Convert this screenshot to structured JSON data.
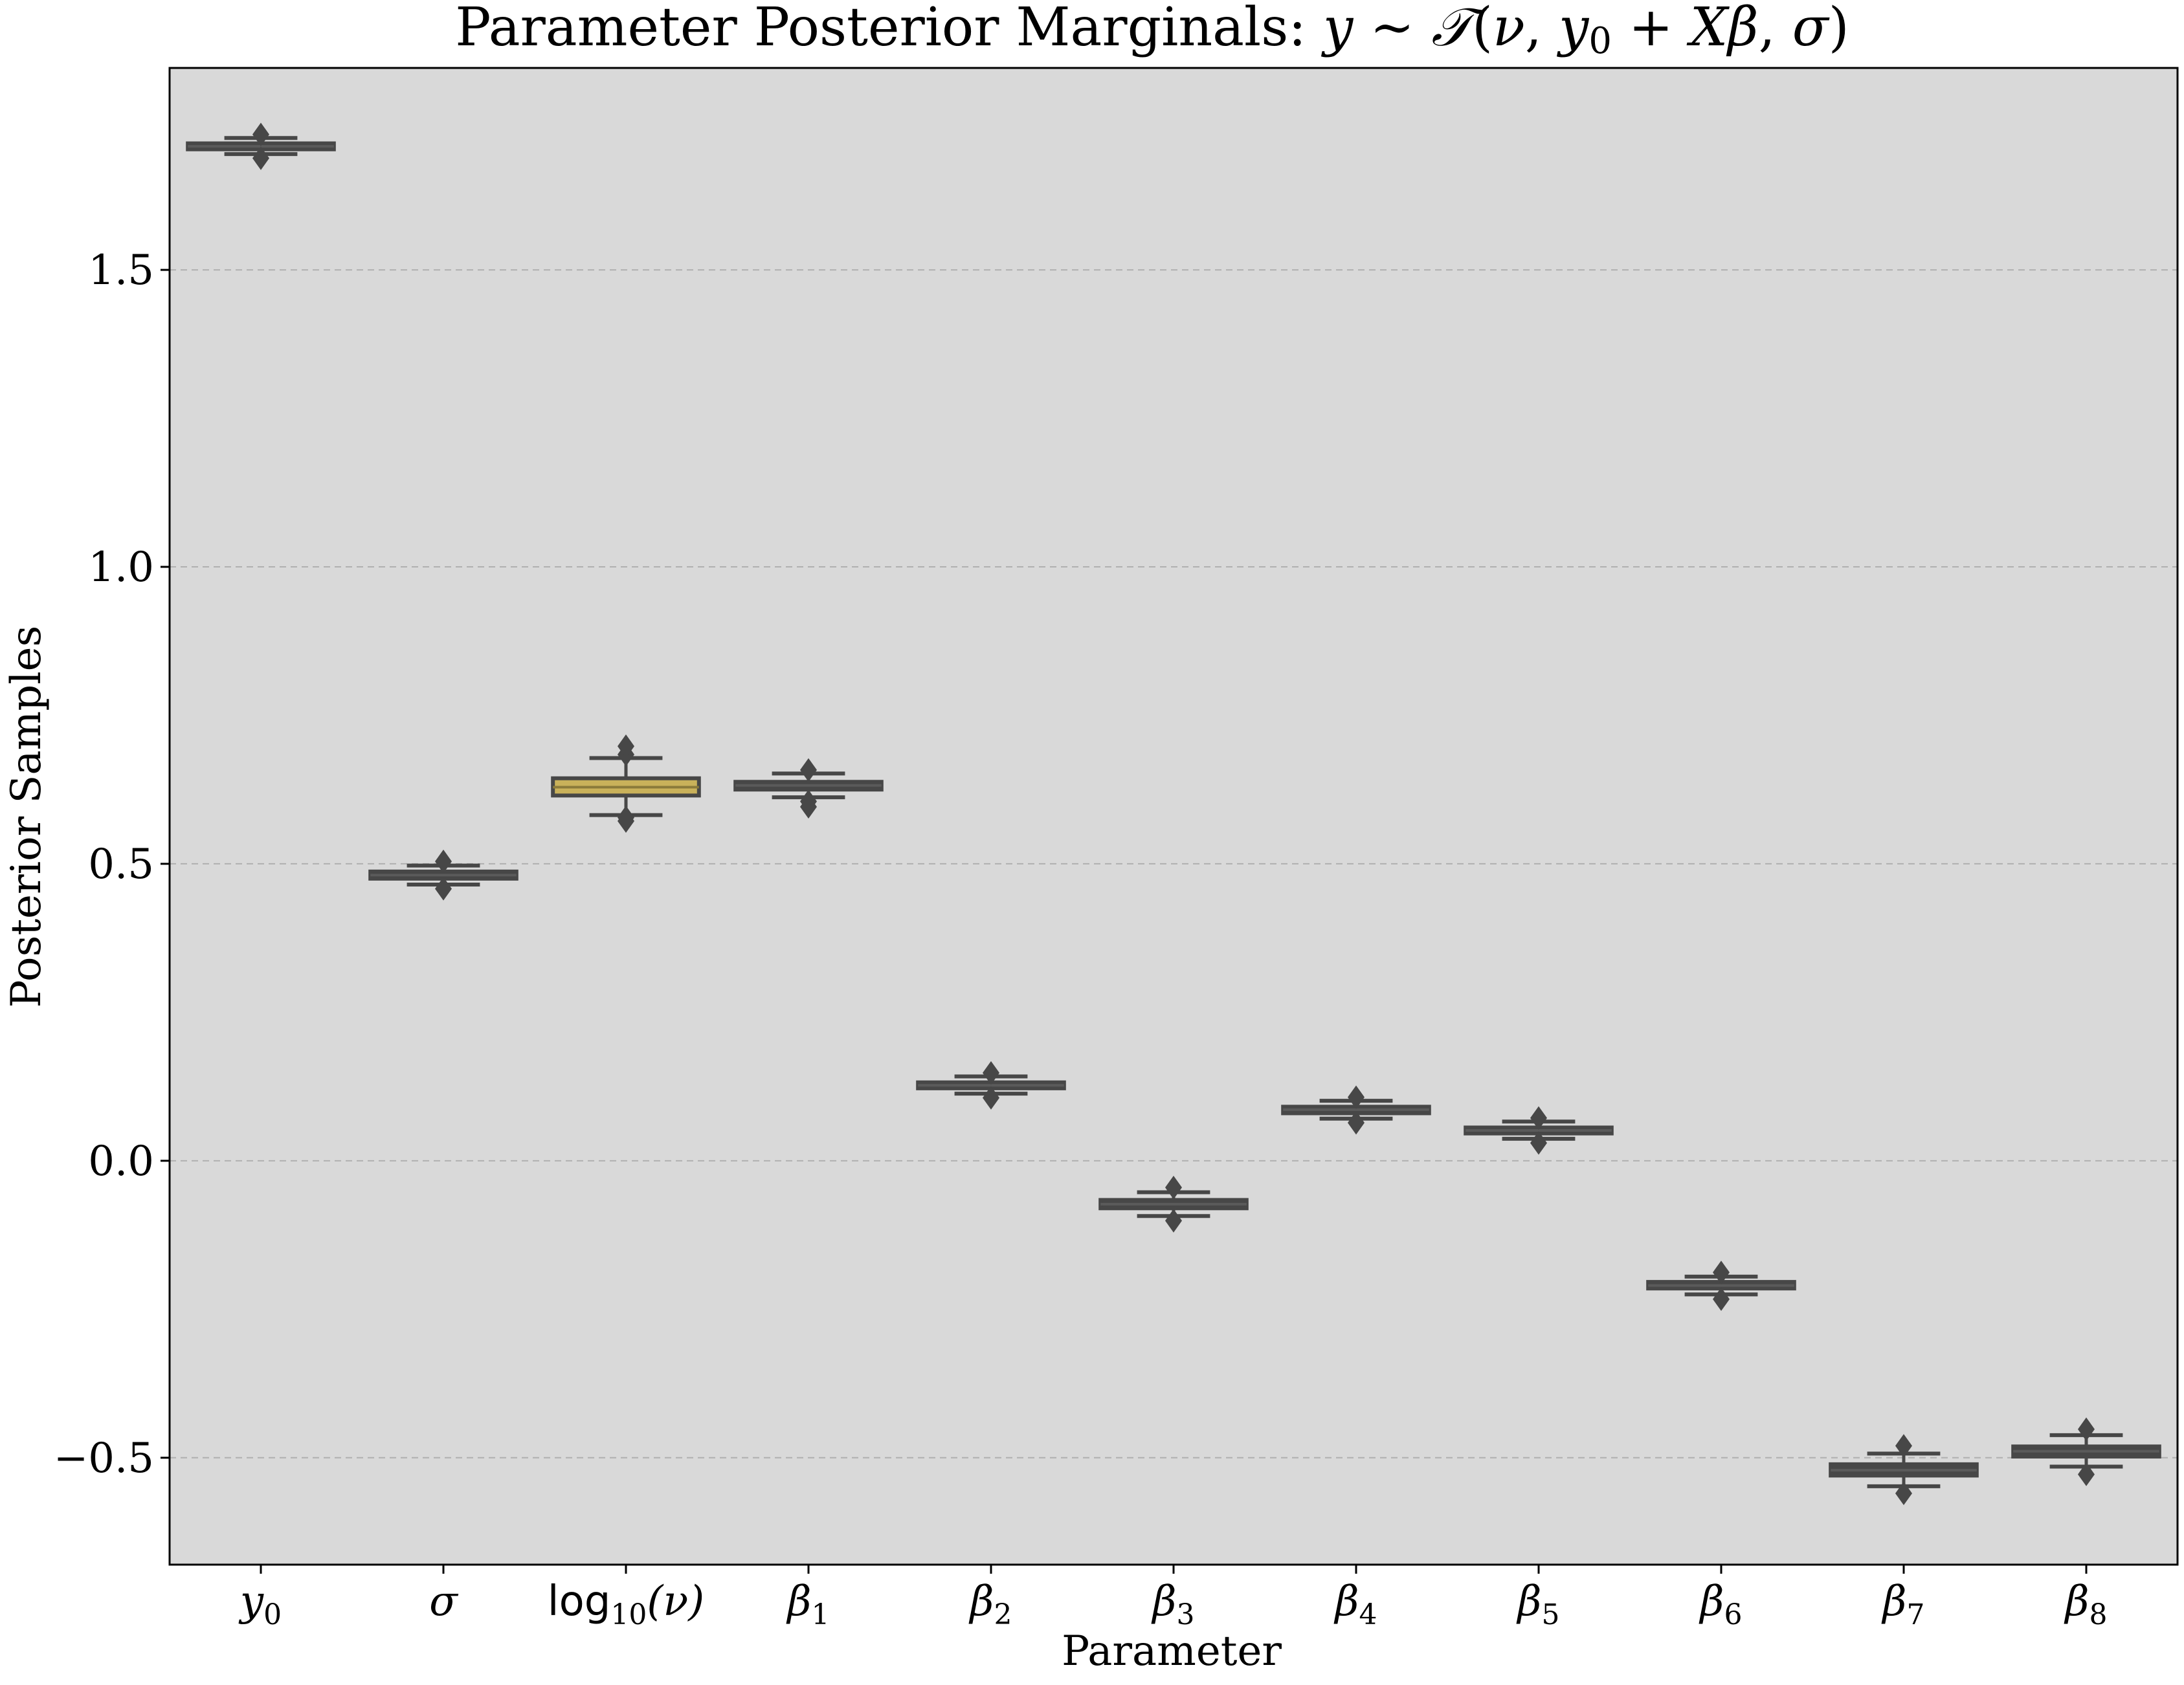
{
  "chart_data": {
    "type": "box",
    "title": "Parameter Posterior Marginals: y ∼ 𝒯(ν, y₀ + Xβ, σ)",
    "xlabel": "Parameter",
    "ylabel": "Posterior Samples",
    "ylim": [
      -0.68,
      1.84
    ],
    "yticks": [
      -0.5,
      0.0,
      0.5,
      1.0,
      1.5
    ],
    "ytick_labels": [
      "−0.5",
      "0.0",
      "0.5",
      "1.0",
      "1.5"
    ],
    "grid": "horizontal dashed",
    "background": "#d9d9d9",
    "box_color": "#474747",
    "highlight_fill": "#c9b15a",
    "categories": [
      "y0",
      "σ",
      "log10(ν)",
      "β1",
      "β2",
      "β3",
      "β4",
      "β5",
      "β6",
      "β7",
      "β8"
    ],
    "boxes": [
      {
        "label": "y0",
        "whislo": 1.695,
        "q1": 1.703,
        "med": 1.708,
        "q3": 1.713,
        "whishi": 1.722,
        "fliers": [
          1.688,
          1.728
        ]
      },
      {
        "label": "σ",
        "whislo": 0.465,
        "q1": 0.475,
        "med": 0.481,
        "q3": 0.487,
        "whishi": 0.497,
        "fliers": [
          0.458,
          0.504
        ]
      },
      {
        "label": "log10(ν)",
        "whislo": 0.582,
        "q1": 0.615,
        "med": 0.629,
        "q3": 0.644,
        "whishi": 0.678,
        "fliers": [
          0.572,
          0.578,
          0.684,
          0.698
        ]
      },
      {
        "label": "β1",
        "whislo": 0.612,
        "q1": 0.625,
        "med": 0.632,
        "q3": 0.638,
        "whishi": 0.652,
        "fliers": [
          0.596,
          0.605,
          0.658
        ]
      },
      {
        "label": "β2",
        "whislo": 0.113,
        "q1": 0.122,
        "med": 0.127,
        "q3": 0.132,
        "whishi": 0.142,
        "fliers": [
          0.106,
          0.148
        ]
      },
      {
        "label": "β3",
        "whislo": -0.093,
        "q1": -0.08,
        "med": -0.073,
        "q3": -0.066,
        "whishi": -0.053,
        "fliers": [
          -0.101,
          -0.045
        ]
      },
      {
        "label": "β4",
        "whislo": 0.071,
        "q1": 0.08,
        "med": 0.086,
        "q3": 0.091,
        "whishi": 0.101,
        "fliers": [
          0.064,
          0.107
        ]
      },
      {
        "label": "β5",
        "whislo": 0.037,
        "q1": 0.046,
        "med": 0.051,
        "q3": 0.056,
        "whishi": 0.066,
        "fliers": [
          0.03,
          0.072
        ]
      },
      {
        "label": "β6",
        "whislo": -0.225,
        "q1": -0.215,
        "med": -0.21,
        "q3": -0.204,
        "whishi": -0.195,
        "fliers": [
          -0.233,
          -0.188
        ]
      },
      {
        "label": "β7",
        "whislo": -0.548,
        "q1": -0.53,
        "med": -0.521,
        "q3": -0.511,
        "whishi": -0.493,
        "fliers": [
          -0.56,
          -0.48
        ]
      },
      {
        "label": "β8",
        "whislo": -0.515,
        "q1": -0.498,
        "med": -0.489,
        "q3": -0.481,
        "whishi": -0.462,
        "fliers": [
          -0.528,
          -0.452
        ]
      }
    ],
    "highlighted_box": "log10(ν)"
  }
}
